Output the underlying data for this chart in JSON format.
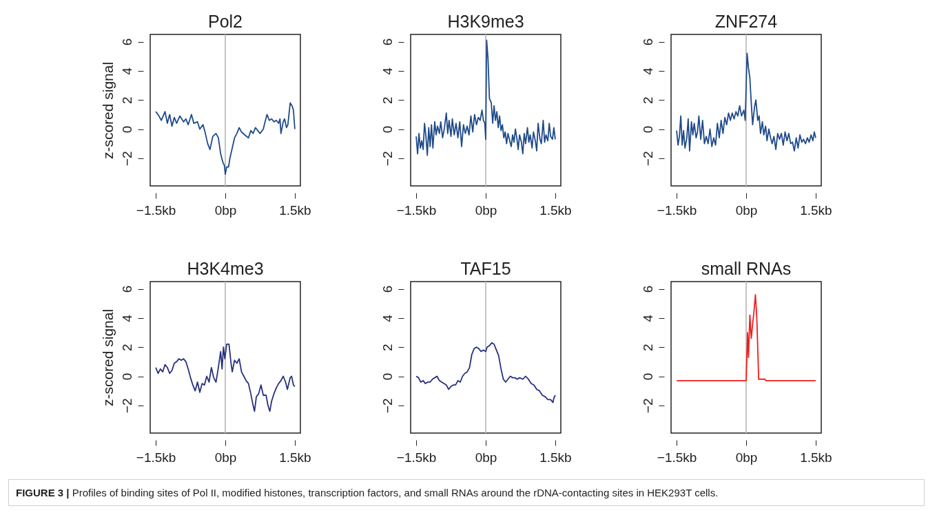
{
  "chart_data": [
    {
      "type": "line",
      "title": "Pol2",
      "ylabel": "z-scored signal",
      "x": [
        -1.5,
        -1.45,
        -1.38,
        -1.3,
        -1.25,
        -1.2,
        -1.15,
        -1.1,
        -1.05,
        -0.98,
        -0.9,
        -0.85,
        -0.8,
        -0.73,
        -0.68,
        -0.6,
        -0.55,
        -0.48,
        -0.43,
        -0.38,
        -0.33,
        -0.27,
        -0.2,
        -0.15,
        -0.1,
        -0.05,
        -0.02,
        0,
        0.03,
        0.07,
        0.1,
        0.15,
        0.2,
        0.25,
        0.3,
        0.35,
        0.42,
        0.5,
        0.55,
        0.6,
        0.65,
        0.7,
        0.75,
        0.82,
        0.85,
        0.9,
        0.95,
        1.0,
        1.05,
        1.1,
        1.15,
        1.18,
        1.2,
        1.25,
        1.28,
        1.32,
        1.35,
        1.4,
        1.44,
        1.47,
        1.5
      ],
      "series": [
        {
          "color": "#1f4a8a",
          "values": [
            1.2,
            1.0,
            0.6,
            1.2,
            0.4,
            1.0,
            0.2,
            0.8,
            0.4,
            0.9,
            0.5,
            0.7,
            0.3,
            1.0,
            0.4,
            0.5,
            0.0,
            0.3,
            -0.3,
            -1.0,
            -1.4,
            -0.5,
            -0.3,
            -0.6,
            -1.7,
            -2.3,
            -2.5,
            -3.1,
            -2.6,
            -2.6,
            -2.0,
            -1.3,
            -0.6,
            -0.3,
            0.1,
            -0.2,
            -0.4,
            -0.6,
            -0.1,
            -0.3,
            0.1,
            -0.1,
            -0.3,
            0.0,
            0.4,
            1.0,
            0.6,
            0.7,
            0.5,
            0.6,
            0.4,
            0.7,
            -0.3,
            0.5,
            0.7,
            0.1,
            0.3,
            1.8,
            1.6,
            1.3,
            0.0
          ]
        }
      ],
      "xlim": [
        -1.62,
        1.62
      ],
      "ylim": [
        -3.9,
        6.5
      ],
      "xticks": [
        {
          "value": -1.5,
          "label": "−1.5kb"
        },
        {
          "value": 0,
          "label": "0bp"
        },
        {
          "value": 1.5,
          "label": "1.5kb"
        }
      ],
      "yticks": [
        -2,
        0,
        2,
        4,
        6
      ],
      "ref_lines": [
        {
          "axis": "x",
          "value": 0,
          "color": "#bebebe"
        }
      ],
      "annotations": [
        "FIGURE 3 | Profiles of binding sites of Pol II, modified histones, transcription factors, and small RNAs around the rDNA-contacting sites in HEK293T cells."
      ]
    },
    {
      "type": "line",
      "title": "H3K9me3",
      "x": [
        -1.5,
        -1.47,
        -1.44,
        -1.41,
        -1.38,
        -1.35,
        -1.32,
        -1.29,
        -1.26,
        -1.23,
        -1.2,
        -1.17,
        -1.14,
        -1.1,
        -1.07,
        -1.04,
        -1.0,
        -0.97,
        -0.93,
        -0.89,
        -0.85,
        -0.82,
        -0.79,
        -0.75,
        -0.72,
        -0.68,
        -0.64,
        -0.6,
        -0.56,
        -0.52,
        -0.48,
        -0.44,
        -0.4,
        -0.36,
        -0.32,
        -0.28,
        -0.24,
        -0.2,
        -0.16,
        -0.12,
        -0.08,
        -0.05,
        -0.02,
        0,
        0.02,
        0.05,
        0.08,
        0.12,
        0.15,
        0.18,
        0.21,
        0.24,
        0.27,
        0.3,
        0.33,
        0.36,
        0.39,
        0.42,
        0.45,
        0.48,
        0.51,
        0.55,
        0.58,
        0.61,
        0.64,
        0.67,
        0.7,
        0.73,
        0.77,
        0.8,
        0.83,
        0.86,
        0.9,
        0.93,
        0.96,
        1.0,
        1.03,
        1.07,
        1.1,
        1.13,
        1.17,
        1.2,
        1.24,
        1.27,
        1.3,
        1.34,
        1.37,
        1.4,
        1.44,
        1.47,
        1.5
      ],
      "series": [
        {
          "color": "#1f4a8a",
          "values": [
            -0.5,
            -1.7,
            -0.3,
            -1.3,
            -0.8,
            -1.4,
            0.4,
            -0.5,
            -1.8,
            0.1,
            -1.2,
            0.3,
            -1.3,
            0.5,
            -0.4,
            0.2,
            -0.3,
            0.5,
            -0.6,
            0.1,
            1.1,
            -0.3,
            0.6,
            -0.5,
            0.7,
            -0.4,
            0.4,
            -0.6,
            0.5,
            -1.2,
            0.3,
            -0.3,
            0.2,
            -0.4,
            0.9,
            -0.2,
            1.0,
            0.3,
            0.8,
            0.6,
            1.3,
            0.6,
            0.4,
            -0.7,
            6.1,
            4.8,
            2.1,
            1.8,
            0.4,
            1.6,
            0.6,
            1.2,
            0.1,
            0.9,
            -0.1,
            0.3,
            -0.6,
            -0.2,
            -1.0,
            -0.3,
            -0.7,
            -1.2,
            -0.4,
            -0.9,
            0.0,
            -0.6,
            -1.4,
            -0.4,
            -0.9,
            -1.7,
            -0.3,
            -1.0,
            0.1,
            -0.9,
            -0.4,
            -1.3,
            -0.2,
            -0.8,
            -1.5,
            0.4,
            -0.7,
            -1.0,
            0.6,
            -0.9,
            -0.4,
            -0.8,
            0.4,
            -0.5,
            -0.7,
            0.1,
            -0.7
          ]
        }
      ],
      "xlim": [
        -1.62,
        1.62
      ],
      "ylim": [
        -3.9,
        6.5
      ],
      "xticks": [
        {
          "value": -1.5,
          "label": "−1.5kb"
        },
        {
          "value": 0,
          "label": "0bp"
        },
        {
          "value": 1.5,
          "label": "1.5kb"
        }
      ],
      "yticks": [
        -2,
        0,
        2,
        4,
        6
      ],
      "ref_lines": [
        {
          "axis": "x",
          "value": 0,
          "color": "#bebebe"
        }
      ]
    },
    {
      "type": "line",
      "title": "ZNF274",
      "x": [
        -1.5,
        -1.47,
        -1.44,
        -1.41,
        -1.38,
        -1.35,
        -1.32,
        -1.28,
        -1.25,
        -1.22,
        -1.18,
        -1.15,
        -1.12,
        -1.08,
        -1.05,
        -1.02,
        -0.98,
        -0.94,
        -0.9,
        -0.86,
        -0.82,
        -0.78,
        -0.74,
        -0.7,
        -0.66,
        -0.62,
        -0.58,
        -0.54,
        -0.5,
        -0.46,
        -0.42,
        -0.38,
        -0.34,
        -0.3,
        -0.26,
        -0.22,
        -0.18,
        -0.14,
        -0.1,
        -0.05,
        -0.02,
        0.02,
        0.05,
        0.08,
        0.11,
        0.14,
        0.18,
        0.21,
        0.25,
        0.28,
        0.31,
        0.35,
        0.38,
        0.42,
        0.45,
        0.49,
        0.52,
        0.56,
        0.6,
        0.64,
        0.68,
        0.72,
        0.76,
        0.8,
        0.84,
        0.88,
        0.92,
        0.96,
        1.0,
        1.04,
        1.08,
        1.12,
        1.16,
        1.2,
        1.24,
        1.28,
        1.32,
        1.36,
        1.4,
        1.44,
        1.47,
        1.5
      ],
      "series": [
        {
          "color": "#1f4a8a",
          "values": [
            -0.1,
            -1.1,
            -0.5,
            0.9,
            -1.1,
            -0.1,
            -1.3,
            -0.6,
            0.7,
            -1.5,
            0.5,
            -0.4,
            0.4,
            -0.6,
            -0.2,
            0.9,
            -0.7,
            0.6,
            -1.0,
            -0.5,
            -1.0,
            0.0,
            -1.2,
            -0.6,
            -1.1,
            0.4,
            -0.6,
            0.6,
            -0.3,
            0.8,
            0.3,
            1.1,
            0.6,
            1.1,
            0.7,
            1.2,
            0.9,
            1.6,
            0.9,
            1.3,
            0.6,
            5.2,
            4.2,
            3.5,
            1.8,
            0.3,
            1.5,
            2.0,
            0.6,
            0.9,
            -0.3,
            0.5,
            -0.4,
            0.2,
            -0.8,
            0.0,
            -0.5,
            -1.0,
            -0.5,
            -1.4,
            -0.3,
            -0.7,
            -0.3,
            -1.1,
            -0.2,
            -0.8,
            -0.3,
            -1.0,
            -0.9,
            -1.5,
            -0.6,
            -1.3,
            -0.4,
            -0.9,
            -0.7,
            -1.0,
            -0.6,
            -0.9,
            -0.4,
            -0.8,
            -0.2,
            -0.6
          ]
        }
      ],
      "xlim": [
        -1.62,
        1.62
      ],
      "ylim": [
        -3.9,
        6.5
      ],
      "xticks": [
        {
          "value": -1.5,
          "label": "−1.5kb"
        },
        {
          "value": 0,
          "label": "0bp"
        },
        {
          "value": 1.5,
          "label": "1.5kb"
        }
      ],
      "yticks": [
        -2,
        0,
        2,
        4,
        6
      ],
      "ref_lines": [
        {
          "axis": "x",
          "value": 0,
          "color": "#bebebe"
        }
      ]
    },
    {
      "type": "line",
      "title": "H3K4me3",
      "ylabel": "z-scored signal",
      "x": [
        -1.5,
        -1.45,
        -1.4,
        -1.35,
        -1.3,
        -1.25,
        -1.2,
        -1.15,
        -1.1,
        -1.05,
        -1.0,
        -0.95,
        -0.9,
        -0.85,
        -0.8,
        -0.75,
        -0.7,
        -0.65,
        -0.6,
        -0.55,
        -0.5,
        -0.45,
        -0.4,
        -0.35,
        -0.3,
        -0.25,
        -0.2,
        -0.15,
        -0.1,
        -0.07,
        -0.04,
        -0.01,
        0.03,
        0.08,
        0.12,
        0.15,
        0.2,
        0.25,
        0.3,
        0.35,
        0.4,
        0.45,
        0.5,
        0.55,
        0.6,
        0.63,
        0.67,
        0.72,
        0.77,
        0.82,
        0.88,
        0.92,
        0.96,
        1.0,
        1.05,
        1.1,
        1.15,
        1.2,
        1.25,
        1.3,
        1.34,
        1.4,
        1.43,
        1.47,
        1.5
      ],
      "series": [
        {
          "color": "#27307e",
          "values": [
            0.6,
            0.2,
            0.5,
            0.3,
            0.8,
            0.6,
            0.2,
            0.4,
            0.9,
            1.0,
            1.2,
            1.1,
            1.2,
            1.0,
            0.5,
            -0.1,
            -0.6,
            -1.0,
            -0.4,
            -1.1,
            -0.5,
            -0.6,
            0.0,
            -0.4,
            0.6,
            -0.1,
            -0.4,
            0.6,
            1.7,
            0.5,
            2.0,
            1.2,
            2.2,
            2.2,
            1.0,
            0.3,
            1.1,
            0.9,
            1.2,
            0.3,
            0.0,
            -0.3,
            -0.5,
            -1.2,
            -2.0,
            -2.4,
            -1.4,
            -1.2,
            -0.6,
            -1.3,
            -1.3,
            -2.0,
            -2.4,
            -1.7,
            -1.2,
            -0.8,
            -0.5,
            -0.3,
            0.0,
            -0.4,
            -0.9,
            -0.1,
            0.0,
            -0.6,
            -0.7
          ]
        }
      ],
      "xlim": [
        -1.62,
        1.62
      ],
      "ylim": [
        -3.9,
        6.5
      ],
      "xticks": [
        {
          "value": -1.5,
          "label": "−1.5kb"
        },
        {
          "value": 0,
          "label": "0bp"
        },
        {
          "value": 1.5,
          "label": "1.5kb"
        }
      ],
      "yticks": [
        -2,
        0,
        2,
        4,
        6
      ],
      "ref_lines": [
        {
          "axis": "x",
          "value": 0,
          "color": "#bebebe"
        }
      ]
    },
    {
      "type": "line",
      "title": "TAF15",
      "x": [
        -1.5,
        -1.45,
        -1.4,
        -1.35,
        -1.3,
        -1.25,
        -1.2,
        -1.15,
        -1.1,
        -1.05,
        -1.0,
        -0.95,
        -0.9,
        -0.85,
        -0.8,
        -0.75,
        -0.7,
        -0.65,
        -0.6,
        -0.55,
        -0.5,
        -0.45,
        -0.4,
        -0.35,
        -0.3,
        -0.25,
        -0.2,
        -0.15,
        -0.1,
        -0.05,
        0.0,
        0.03,
        0.08,
        0.13,
        0.18,
        0.23,
        0.28,
        0.33,
        0.38,
        0.43,
        0.48,
        0.53,
        0.58,
        0.63,
        0.68,
        0.73,
        0.8,
        0.86,
        0.92,
        0.98,
        1.04,
        1.1,
        1.16,
        1.22,
        1.28,
        1.34,
        1.4,
        1.45,
        1.47,
        1.5
      ],
      "series": [
        {
          "color": "#27307e",
          "values": [
            0.0,
            -0.1,
            -0.4,
            -0.3,
            -0.5,
            -0.4,
            -0.4,
            -0.2,
            -0.1,
            0.0,
            -0.3,
            -0.4,
            -0.5,
            -0.6,
            -0.9,
            -0.7,
            -0.6,
            -0.6,
            -0.3,
            -0.4,
            0.0,
            0.2,
            0.3,
            0.6,
            1.5,
            1.9,
            2.0,
            1.9,
            1.7,
            1.8,
            1.7,
            2.0,
            2.1,
            2.3,
            2.2,
            1.8,
            1.4,
            0.5,
            -0.2,
            -0.4,
            -0.2,
            0.0,
            -0.1,
            -0.1,
            -0.2,
            -0.1,
            -0.2,
            0.0,
            -0.2,
            -0.5,
            -0.6,
            -0.9,
            -1.0,
            -1.3,
            -1.4,
            -1.6,
            -1.6,
            -1.8,
            -1.5,
            -1.3
          ]
        }
      ],
      "xlim": [
        -1.62,
        1.62
      ],
      "ylim": [
        -3.9,
        6.5
      ],
      "xticks": [
        {
          "value": -1.5,
          "label": "−1.5kb"
        },
        {
          "value": 0,
          "label": "0bp"
        },
        {
          "value": 1.5,
          "label": "1.5kb"
        }
      ],
      "yticks": [
        -2,
        0,
        2,
        4,
        6
      ],
      "ref_lines": [
        {
          "axis": "x",
          "value": 0,
          "color": "#bebebe"
        }
      ]
    },
    {
      "type": "line",
      "title": "small RNAs",
      "x": [
        -1.5,
        -1.0,
        -0.5,
        0.0,
        0.01,
        0.03,
        0.05,
        0.08,
        0.11,
        0.14,
        0.17,
        0.2,
        0.23,
        0.27,
        0.4,
        0.43,
        0.5,
        1.0,
        1.5
      ],
      "series": [
        {
          "color": "#f21c1c",
          "values": [
            -0.3,
            -0.3,
            -0.3,
            -0.3,
            0.7,
            3.0,
            1.3,
            4.2,
            2.6,
            3.6,
            4.5,
            5.6,
            4.0,
            -0.2,
            -0.2,
            -0.3,
            -0.3,
            -0.3,
            -0.3
          ]
        }
      ],
      "xlim": [
        -1.62,
        1.62
      ],
      "ylim": [
        -3.9,
        6.5
      ],
      "xticks": [
        {
          "value": -1.5,
          "label": "−1.5kb"
        },
        {
          "value": 0,
          "label": "0bp"
        },
        {
          "value": 1.5,
          "label": "1.5kb"
        }
      ],
      "yticks": [
        -2,
        0,
        2,
        4,
        6
      ],
      "ref_lines": [
        {
          "axis": "x",
          "value": 0,
          "color": "#bebebe"
        }
      ]
    }
  ]
}
